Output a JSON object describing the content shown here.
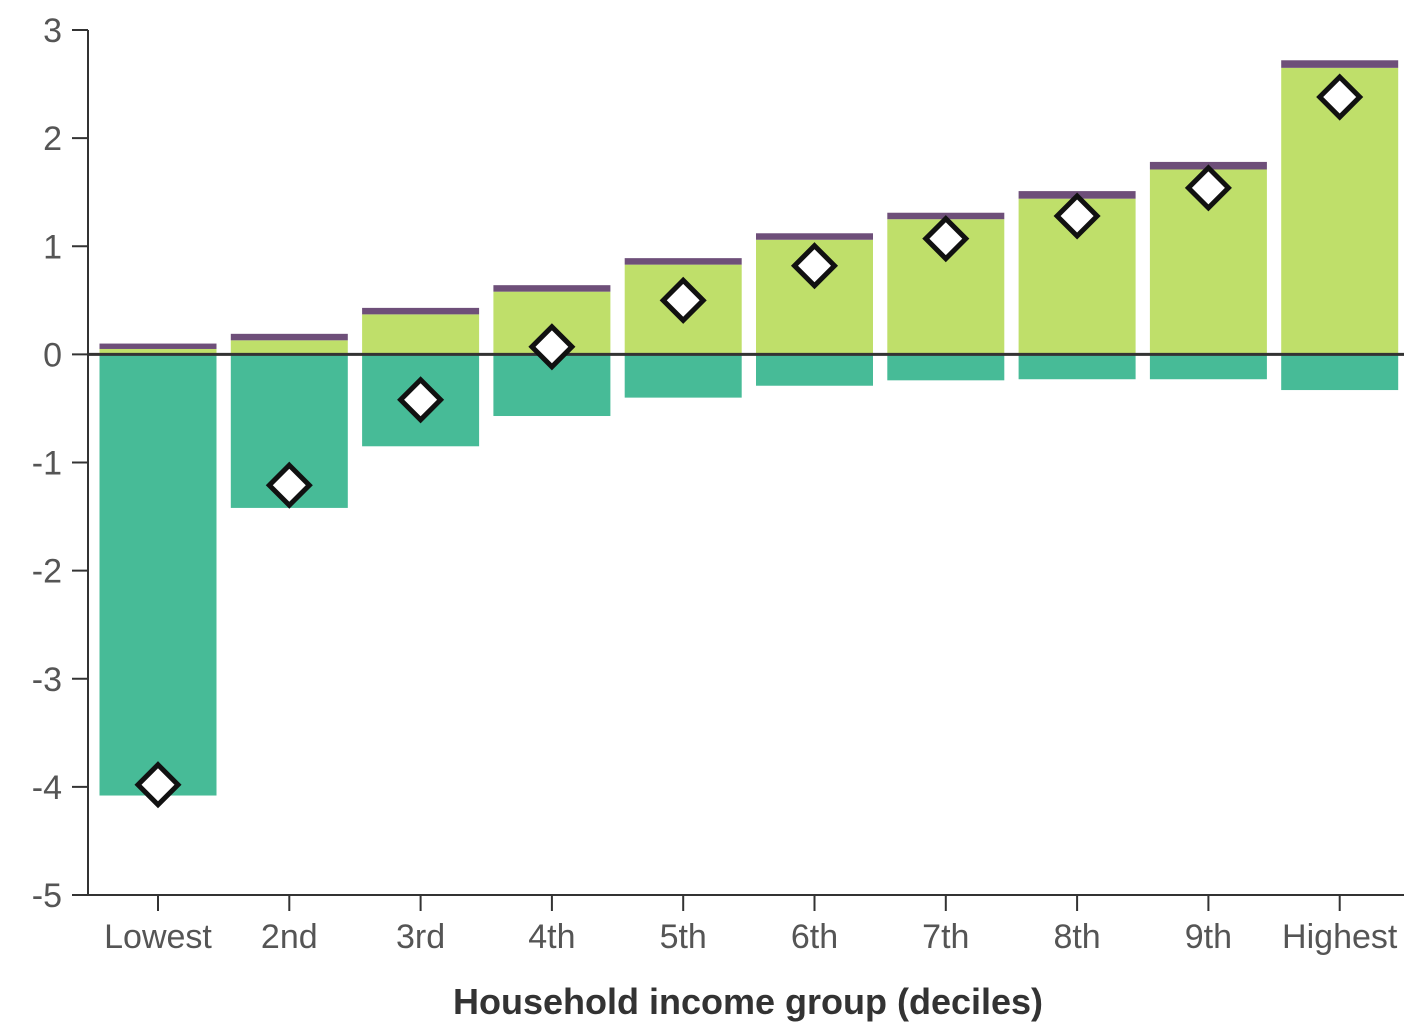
{
  "chart_data": {
    "type": "bar",
    "subtype": "stacked bar with markers",
    "xlabel": "Household income group (deciles)",
    "ylabel": "",
    "ylim": [
      -5,
      3
    ],
    "yticks": [
      3,
      2,
      1,
      0,
      -1,
      -2,
      -3,
      -4,
      -5
    ],
    "grid": false,
    "legend": "none",
    "categories": [
      "Lowest",
      "2nd",
      "3rd",
      "4th",
      "5th",
      "6th",
      "7th",
      "8th",
      "9th",
      "Highest"
    ],
    "series": [
      {
        "color": "#bfdf6a",
        "values": [
          0.05,
          0.13,
          0.37,
          0.58,
          0.83,
          1.06,
          1.25,
          1.44,
          1.71,
          2.65
        ]
      },
      {
        "color": "#6e4f79",
        "values": [
          0.05,
          0.06,
          0.06,
          0.06,
          0.06,
          0.06,
          0.06,
          0.07,
          0.07,
          0.07
        ]
      },
      {
        "color": "#47bb97",
        "values": [
          -4.08,
          -1.42,
          -0.85,
          -0.57,
          -0.4,
          -0.29,
          -0.24,
          -0.23,
          -0.23,
          -0.33
        ]
      }
    ],
    "markers": {
      "shape": "diamond",
      "values": [
        -3.98,
        -1.21,
        -0.42,
        0.07,
        0.5,
        0.82,
        1.07,
        1.28,
        1.54,
        2.38
      ]
    }
  }
}
